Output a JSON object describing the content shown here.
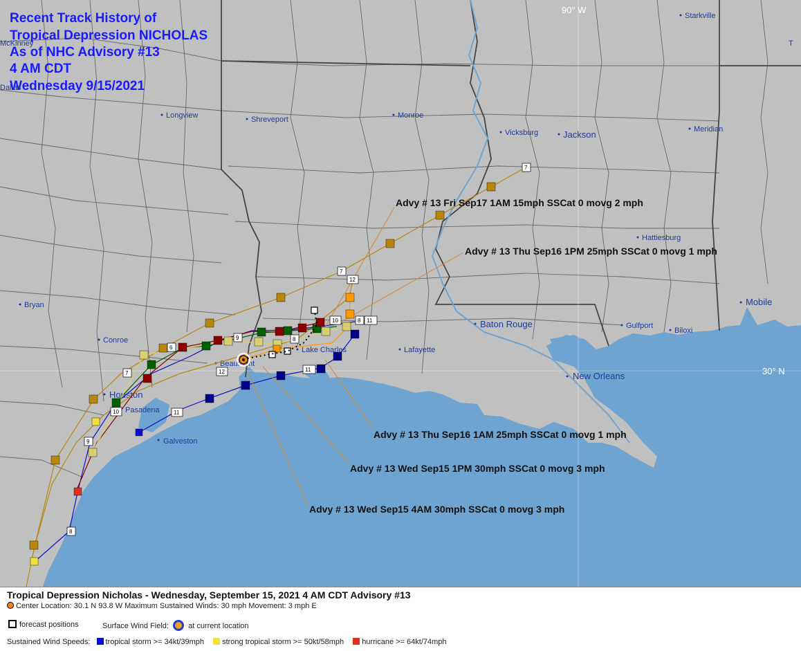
{
  "title": {
    "line1": "Recent Track History of",
    "line2": "Tropical Depression NICHOLAS",
    "line3": "As of NHC Advisory #13",
    "line4": "4 AM CDT",
    "line5": "Wednesday 9/15/2021"
  },
  "grid_labels": {
    "lon": "90° W",
    "lat": "30° N"
  },
  "cities": {
    "starkville": "Starkville",
    "mckinney": "McKinney",
    "dallas": "Dallas",
    "longview": "Longview",
    "shreveport": "Shreveport",
    "monroe": "Monroe",
    "vicksburg": "Vicksburg",
    "jackson": "Jackson",
    "meridian": "Meridian",
    "hattiesburg": "Hattiesburg",
    "mobile": "Mobile",
    "bryan": "Bryan",
    "conroe": "Conroe",
    "beaumont": "Beaumont",
    "lake_charles": "Lake Charles",
    "lafayette": "Lafayette",
    "baton_rouge": "Baton Rouge",
    "gulfport": "Gulfport",
    "biloxi": "Biloxi",
    "new_orleans": "New Orleans",
    "houston": "Houston",
    "pasadena": "Pasadena",
    "galveston": "Galveston",
    "t_edge": "T"
  },
  "annotations": {
    "fri17": "Advy # 13 Fri Sep17 1AM  15mph SSCat 0 movg 2 mph",
    "thu16pm": "Advy # 13 Thu Sep16 1PM  25mph SSCat 0 movg 1 mph",
    "thu16am": "Advy # 13 Thu Sep16 1AM  25mph SSCat 0 movg 1 mph",
    "wed15pm": "Advy # 13 Wed Sep15 1PM  30mph SSCat 0 movg 3 mph",
    "wed15am": "Advy # 13 Wed Sep15 4AM  30mph SSCat 0 movg 3 mph"
  },
  "track_numbers": [
    "7",
    "12",
    "7",
    "10",
    "11",
    "8",
    "9",
    "6",
    "8",
    "12",
    "7",
    "11",
    "10",
    "11",
    "9",
    "8"
  ],
  "colors": {
    "land": "#c0c0c0",
    "water": "#6fa4d0",
    "borders": "#555555",
    "tropical_storm": "#0b0bd8",
    "strong_tropical_storm": "#f0e040",
    "hurricane": "#e03020",
    "center": "#f08020"
  },
  "legend": {
    "header": "Tropical Depression Nicholas  -  Wednesday, September 15, 2021  4 AM CDT   Advisory #13",
    "center_location": "Center Location: 30.1 N   93.8 W   Maximum Sustained Winds: 30 mph   Movement: 3 mph E",
    "forecast_positions": "forecast positions",
    "surface_wind_field": "Surface Wind Field:",
    "at_current_location": "at current location",
    "sustained_label": "Sustained Wind Speeds:",
    "ts": "tropical storm >= 34kt/39mph",
    "sts": "strong tropical storm >= 50kt/58mph",
    "hu": "hurricane >= 64kt/74mph"
  }
}
